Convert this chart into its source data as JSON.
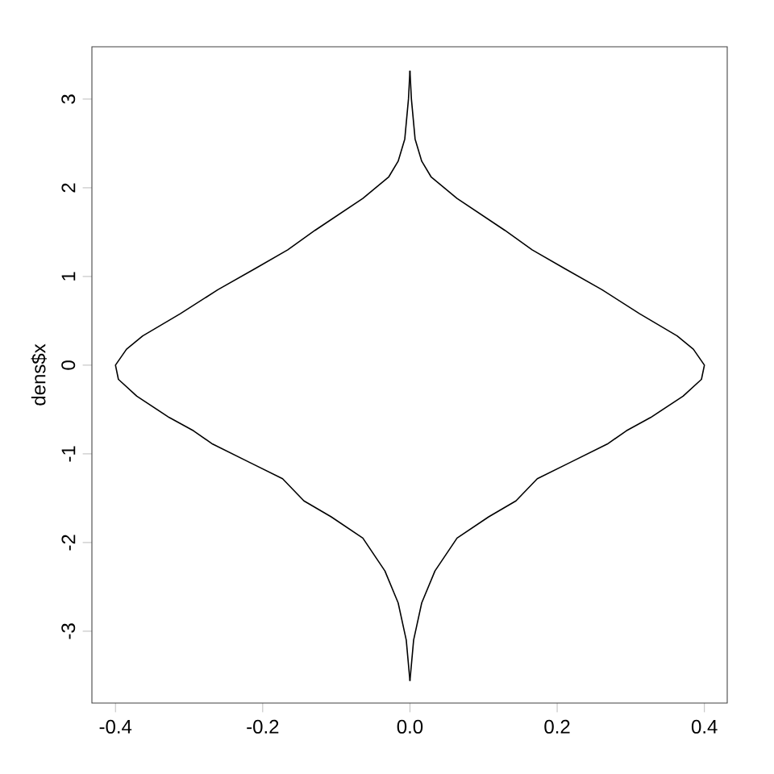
{
  "chart_data": {
    "type": "line",
    "ylabel": "dens$x",
    "xlim": [
      -0.432,
      0.431
    ],
    "ylim": [
      -3.81,
      3.59
    ],
    "xticks": [
      -0.4,
      -0.2,
      {
        "value": 0,
        "label": "0.0"
      },
      0.2,
      0.4
    ],
    "yticks": [
      -3,
      -2,
      -1,
      0,
      1,
      2,
      3
    ],
    "grid": false,
    "marker": "none",
    "line_style": "solid",
    "series": [
      {
        "color": "#000000",
        "x": [
          0,
          0.005,
          0.016,
          0.034,
          0.064,
          0.107,
          0.144,
          0.173,
          0.217,
          0.268,
          0.294,
          0.327,
          0.371,
          0.396,
          0.4,
          0.385,
          0.363,
          0.312,
          0.261,
          0.21,
          0.166,
          0.129,
          0.064,
          0.029,
          0.016,
          0.007,
          0.002,
          0
        ],
        "values": [
          -3.56,
          -3.1,
          -2.68,
          -2.32,
          -1.95,
          -1.71,
          -1.53,
          -1.28,
          -1.1,
          -0.89,
          -0.74,
          -0.59,
          -0.35,
          -0.16,
          0,
          0.18,
          0.33,
          0.58,
          0.85,
          1.09,
          1.3,
          1.52,
          1.88,
          2.12,
          2.3,
          2.55,
          3.0,
          3.32
        ]
      },
      {
        "color": "#000000",
        "x": [
          0,
          -0.005,
          -0.016,
          -0.034,
          -0.064,
          -0.107,
          -0.144,
          -0.173,
          -0.217,
          -0.268,
          -0.294,
          -0.327,
          -0.371,
          -0.396,
          -0.4,
          -0.385,
          -0.363,
          -0.312,
          -0.261,
          -0.21,
          -0.166,
          -0.129,
          -0.064,
          -0.029,
          -0.016,
          -0.007,
          -0.002,
          0
        ],
        "values": [
          -3.56,
          -3.1,
          -2.68,
          -2.32,
          -1.95,
          -1.71,
          -1.53,
          -1.28,
          -1.1,
          -0.89,
          -0.74,
          -0.59,
          -0.35,
          -0.16,
          0,
          0.18,
          0.33,
          0.58,
          0.85,
          1.09,
          1.3,
          1.52,
          1.88,
          2.12,
          2.3,
          2.55,
          3.0,
          3.32
        ]
      }
    ]
  }
}
